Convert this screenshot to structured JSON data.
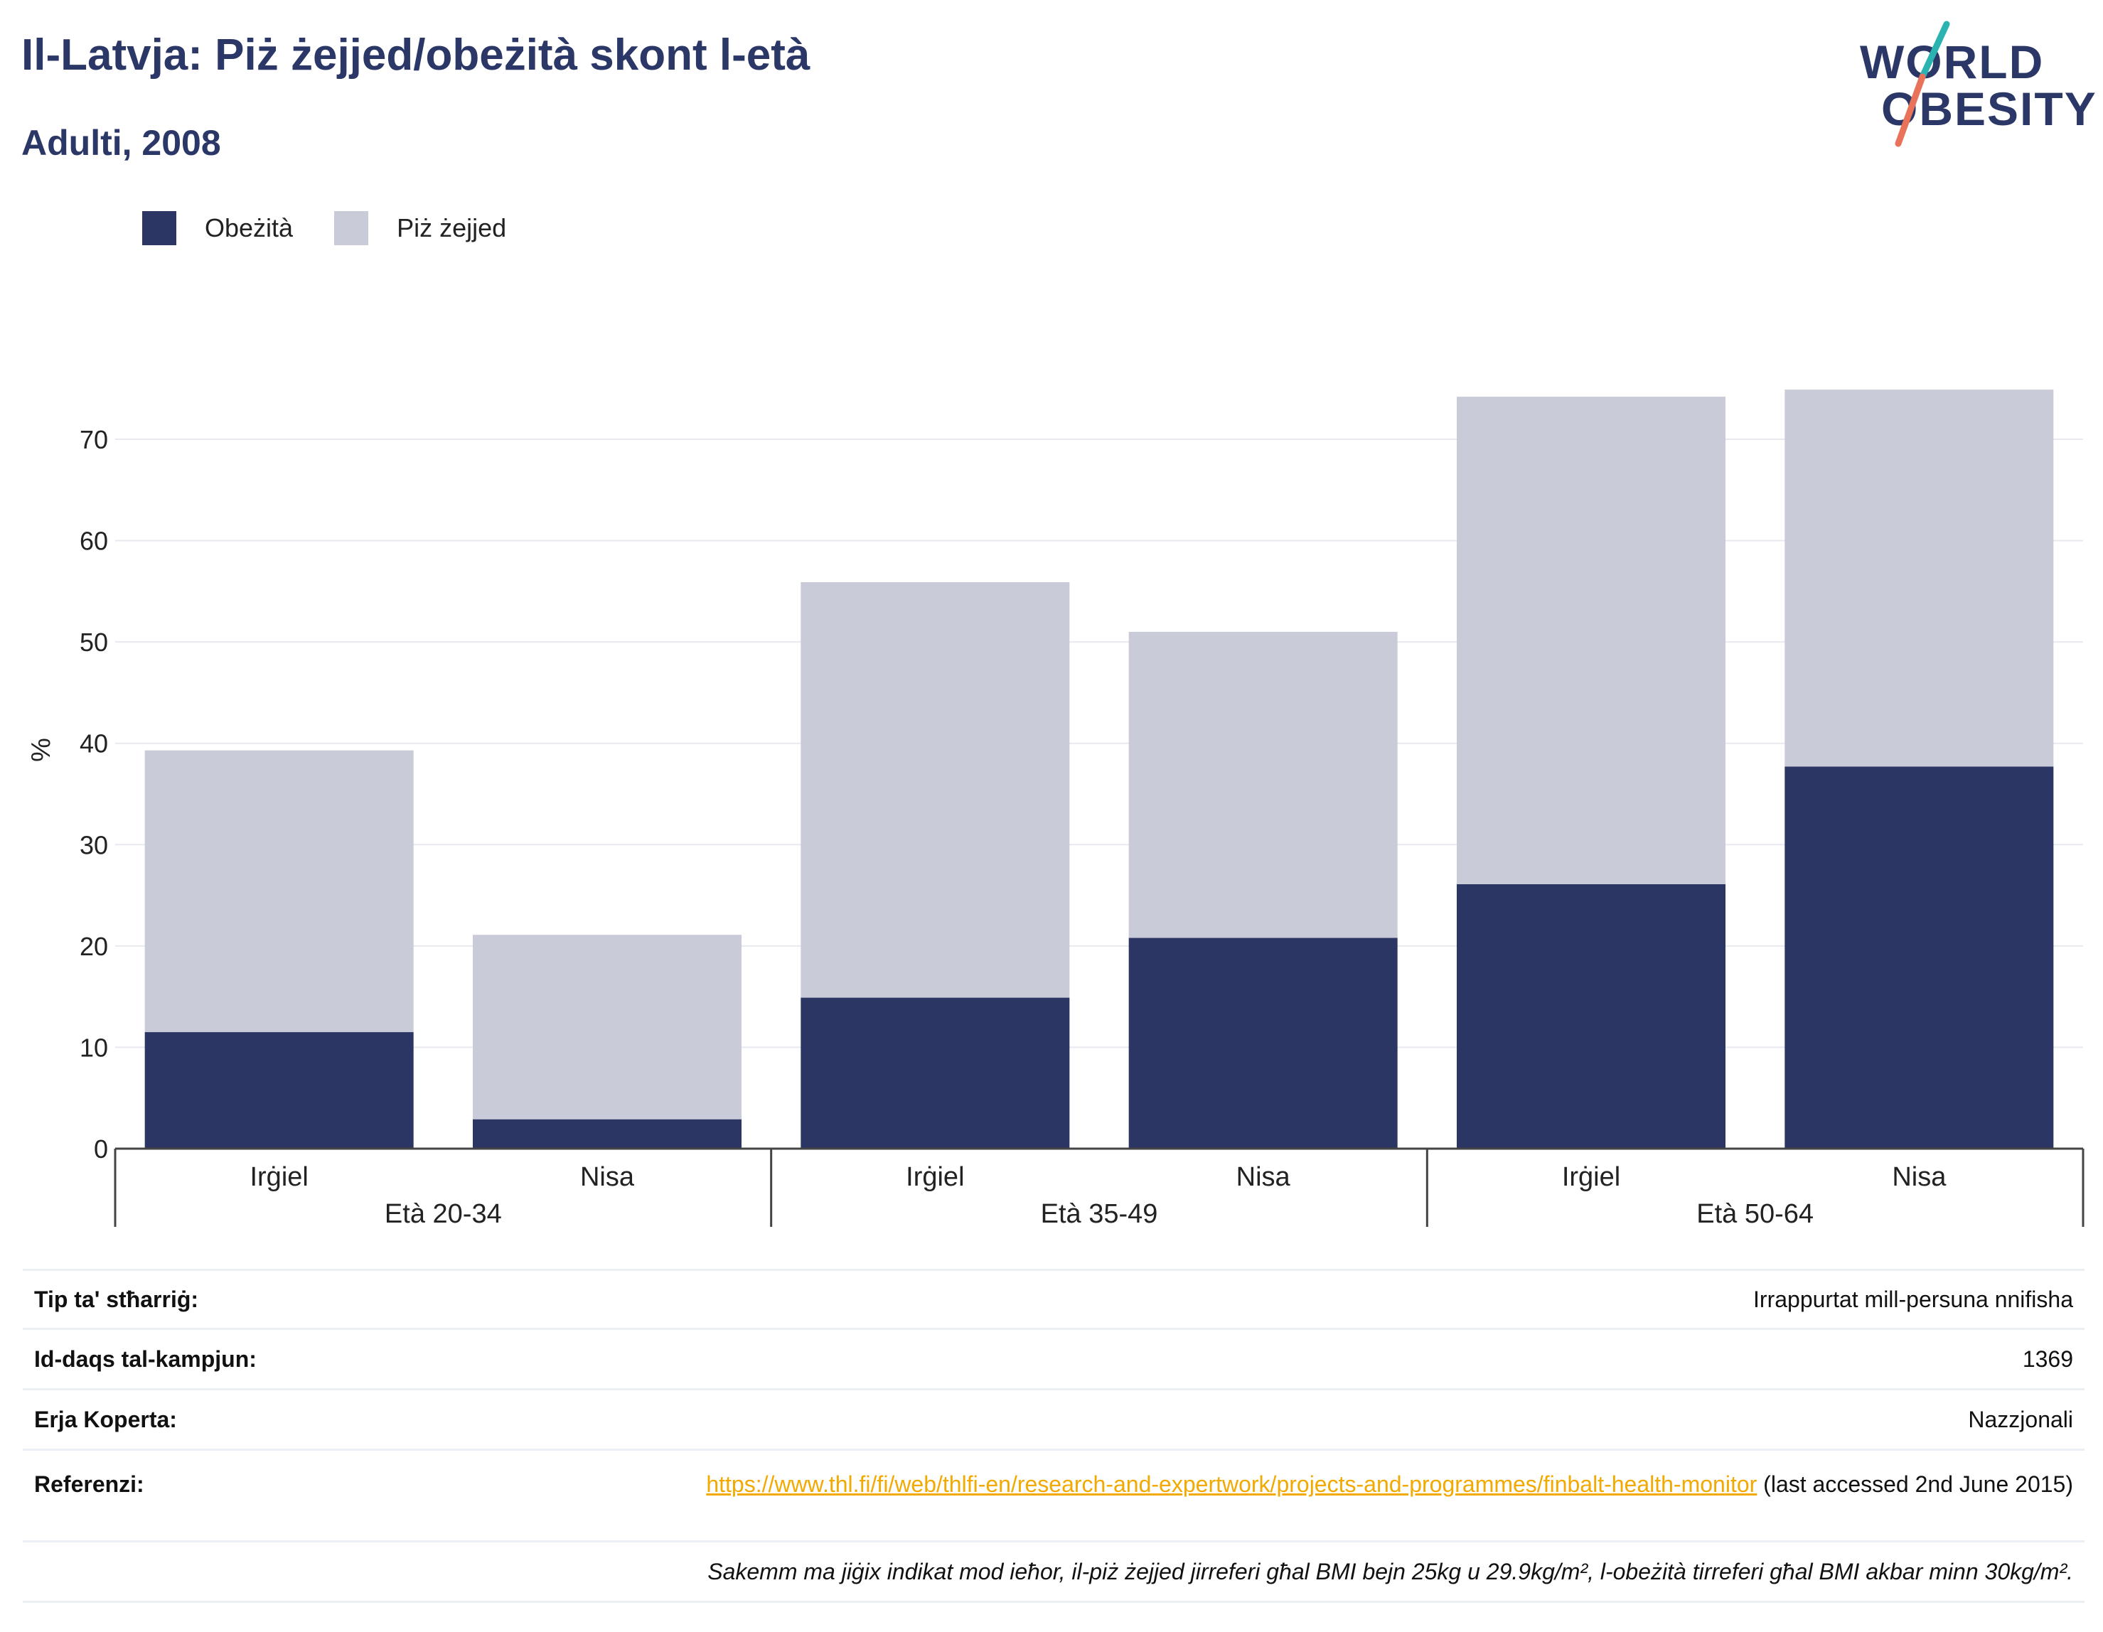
{
  "header": {
    "title": "Il-Latvja: Piż żejjed/obeżità skont l-età",
    "subtitle": "Adulti, 2008"
  },
  "logo": {
    "line1": "WORLD",
    "line2": "OBESITY",
    "colors": {
      "text": "#2b3766",
      "slash_top": "#2ab3b1",
      "slash_bottom": "#e8735a"
    }
  },
  "chart_data": {
    "type": "bar",
    "stacked": true,
    "groups": [
      "Età 20-34",
      "Età 35-49",
      "Età 50-64"
    ],
    "categories": [
      "Irġiel",
      "Nisa",
      "Irġiel",
      "Nisa",
      "Irġiel",
      "Nisa"
    ],
    "series": [
      {
        "name": "Obeżità",
        "color": "#2b3665",
        "values": [
          11.5,
          2.9,
          14.9,
          20.8,
          26.1,
          37.7
        ]
      },
      {
        "name": "Piż żejjed",
        "color": "#c9ccd8",
        "values": [
          27.8,
          18.2,
          41.0,
          30.2,
          48.1,
          37.2
        ]
      }
    ],
    "ylabel": "%",
    "xlabel": "",
    "ylim": [
      0,
      75
    ],
    "yticks": [
      0,
      10,
      20,
      30,
      40,
      50,
      60,
      70
    ],
    "grid": true,
    "legend_position": "top-left"
  },
  "info": {
    "survey_type_label": "Tip ta' stħarriġ:",
    "survey_type_value": "Irrappurtat mill-persuna nnifisha",
    "sample_size_label": "Id-daqs tal-kampjun:",
    "sample_size_value": "1369",
    "coverage_label": "Erja Koperta:",
    "coverage_value": "Nazzjonali",
    "references_label": "Referenzi:",
    "references_link": "https://www.thl.fi/fi/web/thlfi-en/research-and-expertwork/projects-and-programmes/finbalt-health-monitor",
    "references_note": " (last accessed 2nd June 2015)",
    "footnote": "Sakemm ma jiġix indikat mod ieħor, il-piż żejjed jirreferi għal BMI bejn 25kg u 29.9kg/m², l-obeżità tirreferi għal BMI akbar minn 30kg/m²."
  }
}
